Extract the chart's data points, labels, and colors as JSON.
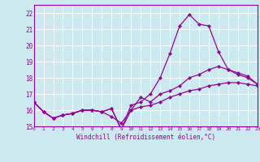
{
  "xlabel": "Windchill (Refroidissement éolien,°C)",
  "xlim": [
    0,
    23
  ],
  "ylim": [
    15,
    22.5
  ],
  "xticks": [
    0,
    1,
    2,
    3,
    4,
    5,
    6,
    7,
    8,
    9,
    10,
    11,
    12,
    13,
    14,
    15,
    16,
    17,
    18,
    19,
    20,
    21,
    22,
    23
  ],
  "yticks": [
    15,
    16,
    17,
    18,
    19,
    20,
    21,
    22
  ],
  "bg_color": "#cce9f0",
  "line_color": "#990099",
  "grid_color": "#ffffff",
  "lines": [
    {
      "x": [
        0,
        1,
        2,
        3,
        4,
        5,
        6,
        7,
        8,
        9,
        10,
        11,
        12,
        13,
        14,
        15,
        16,
        17,
        18,
        19,
        20,
        21,
        22,
        23
      ],
      "y": [
        16.5,
        15.9,
        15.5,
        15.7,
        15.8,
        16.0,
        16.0,
        15.9,
        16.1,
        14.8,
        16.3,
        16.5,
        17.0,
        18.0,
        19.5,
        21.2,
        21.9,
        21.3,
        21.2,
        19.6,
        18.5,
        18.2,
        18.0,
        17.6
      ]
    },
    {
      "x": [
        0,
        1,
        2,
        3,
        4,
        5,
        6,
        7,
        8,
        9,
        10,
        11,
        12,
        13,
        14,
        15,
        16,
        17,
        18,
        19,
        20,
        21,
        22,
        23
      ],
      "y": [
        16.5,
        15.9,
        15.5,
        15.7,
        15.8,
        16.0,
        16.0,
        15.9,
        16.1,
        14.8,
        16.0,
        16.8,
        16.5,
        17.0,
        17.2,
        17.5,
        18.0,
        18.2,
        18.5,
        18.7,
        18.5,
        18.3,
        18.1,
        17.6
      ]
    },
    {
      "x": [
        0,
        1,
        2,
        3,
        4,
        5,
        6,
        7,
        8,
        9,
        10,
        11,
        12,
        13,
        14,
        15,
        16,
        17,
        18,
        19,
        20,
        21,
        22,
        23
      ],
      "y": [
        16.5,
        15.9,
        15.5,
        15.7,
        15.8,
        16.0,
        16.0,
        15.9,
        15.6,
        15.2,
        16.0,
        16.2,
        16.3,
        16.5,
        16.8,
        17.0,
        17.2,
        17.3,
        17.5,
        17.6,
        17.7,
        17.7,
        17.6,
        17.5
      ]
    }
  ]
}
